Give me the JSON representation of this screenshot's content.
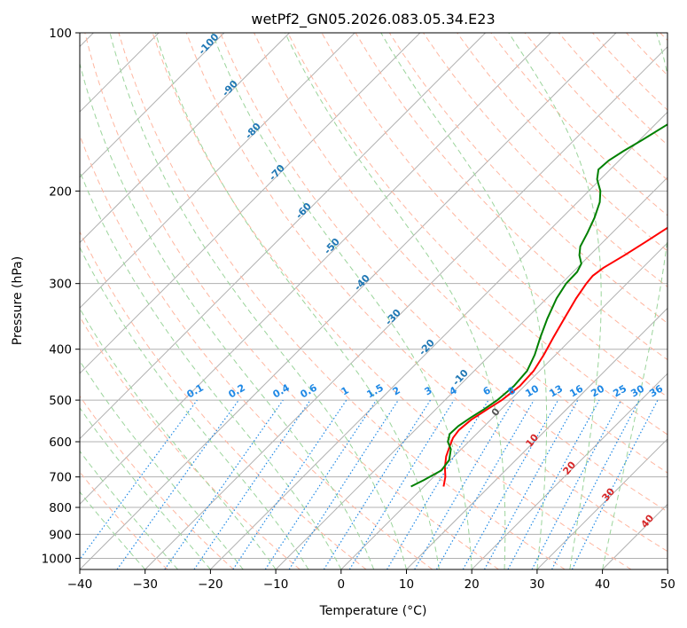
{
  "chart_data": {
    "type": "line",
    "title": "wetPf2_GN05.2026.083.05.34.E23",
    "xlabel": "Temperature (°C)",
    "ylabel": "Pressure (hPa)",
    "xlim": [
      -40,
      50
    ],
    "ylim": [
      1050,
      100
    ],
    "y_scale": "log",
    "grid": true,
    "x_ticks": [
      -40,
      -30,
      -20,
      -10,
      0,
      10,
      20,
      30,
      40,
      50
    ],
    "y_ticks": [
      100,
      200,
      300,
      400,
      500,
      600,
      700,
      800,
      900,
      1000
    ],
    "series": [
      {
        "role": "temperature",
        "color": "#ff0000",
        "points": [
          {
            "p": 730,
            "t": 3.0
          },
          {
            "p": 700,
            "t": 1.8
          },
          {
            "p": 670,
            "t": 0.2
          },
          {
            "p": 640,
            "t": -1.2
          },
          {
            "p": 610,
            "t": -2.3
          },
          {
            "p": 590,
            "t": -3.0
          },
          {
            "p": 570,
            "t": -3.3
          },
          {
            "p": 545,
            "t": -3.0
          },
          {
            "p": 520,
            "t": -2.1
          },
          {
            "p": 500,
            "t": -1.3
          },
          {
            "p": 470,
            "t": -0.7
          },
          {
            "p": 440,
            "t": -0.9
          },
          {
            "p": 410,
            "t": -1.8
          },
          {
            "p": 380,
            "t": -3.0
          },
          {
            "p": 350,
            "t": -4.2
          },
          {
            "p": 320,
            "t": -5.5
          },
          {
            "p": 300,
            "t": -6.2
          },
          {
            "p": 290,
            "t": -6.4
          },
          {
            "p": 280,
            "t": -6.0
          },
          {
            "p": 265,
            "t": -4.7
          },
          {
            "p": 250,
            "t": -3.5
          },
          {
            "p": 235,
            "t": -2.3
          },
          {
            "p": 220,
            "t": -1.2
          },
          {
            "p": 210,
            "t": 0.2
          },
          {
            "p": 200,
            "t": 1.8
          },
          {
            "p": 190,
            "t": 4.2
          },
          {
            "p": 180,
            "t": 6.5
          },
          {
            "p": 170,
            "t": 8.0
          },
          {
            "p": 160,
            "t": 8.8
          },
          {
            "p": 150,
            "t": 9.2
          },
          {
            "p": 140,
            "t": 9.7
          },
          {
            "p": 130,
            "t": 10.5
          },
          {
            "p": 120,
            "t": 10.6
          },
          {
            "p": 110,
            "t": 11.0
          },
          {
            "p": 100,
            "t": 12.0
          }
        ]
      },
      {
        "role": "dewpoint",
        "color": "#008000",
        "points": [
          {
            "p": 730,
            "t": -2.0
          },
          {
            "p": 710,
            "t": -1.0
          },
          {
            "p": 680,
            "t": 0.2
          },
          {
            "p": 650,
            "t": -0.2
          },
          {
            "p": 620,
            "t": -1.6
          },
          {
            "p": 600,
            "t": -3.2
          },
          {
            "p": 580,
            "t": -4.1
          },
          {
            "p": 560,
            "t": -4.0
          },
          {
            "p": 540,
            "t": -3.4
          },
          {
            "p": 520,
            "t": -2.6
          },
          {
            "p": 500,
            "t": -2.0
          },
          {
            "p": 470,
            "t": -1.6
          },
          {
            "p": 440,
            "t": -1.9
          },
          {
            "p": 410,
            "t": -3.2
          },
          {
            "p": 380,
            "t": -5.0
          },
          {
            "p": 350,
            "t": -6.8
          },
          {
            "p": 320,
            "t": -8.5
          },
          {
            "p": 300,
            "t": -9.3
          },
          {
            "p": 285,
            "t": -9.4
          },
          {
            "p": 275,
            "t": -10.0
          },
          {
            "p": 265,
            "t": -11.6
          },
          {
            "p": 255,
            "t": -12.8
          },
          {
            "p": 240,
            "t": -13.8
          },
          {
            "p": 225,
            "t": -15.0
          },
          {
            "p": 210,
            "t": -16.6
          },
          {
            "p": 200,
            "t": -18.2
          },
          {
            "p": 190,
            "t": -20.5
          },
          {
            "p": 182,
            "t": -21.8
          },
          {
            "p": 175,
            "t": -21.6
          },
          {
            "p": 168,
            "t": -20.8
          },
          {
            "p": 160,
            "t": -19.6
          },
          {
            "p": 150,
            "t": -18.2
          },
          {
            "p": 140,
            "t": -16.6
          },
          {
            "p": 130,
            "t": -14.8
          },
          {
            "p": 120,
            "t": -12.8
          },
          {
            "p": 110,
            "t": -10.8
          },
          {
            "p": 100,
            "t": -8.2
          }
        ]
      }
    ],
    "annotations": {
      "top_labels": [
        "-100",
        "-90",
        "-80",
        "-70",
        "-60",
        "-50",
        "-40",
        "-30",
        "-20",
        "-10"
      ],
      "mixing_ratio_labels": [
        "0.1",
        "0.2",
        "0.4",
        "0.6",
        "1",
        "1.5",
        "2",
        "3",
        "4",
        "6",
        "8",
        "10",
        "13",
        "16",
        "20",
        "25",
        "30",
        "36"
      ],
      "right_labels": [
        "0",
        "10",
        "20",
        "30",
        "40"
      ]
    },
    "colors": {
      "isotherm": "#b0b0b0",
      "dry_adiabat": "#ffb6a0",
      "moist_adiabat": "#9bd49b",
      "mixing_ratio": "#1e88e5",
      "top_label": "#1f77b4",
      "right_label": "#d62728"
    }
  }
}
